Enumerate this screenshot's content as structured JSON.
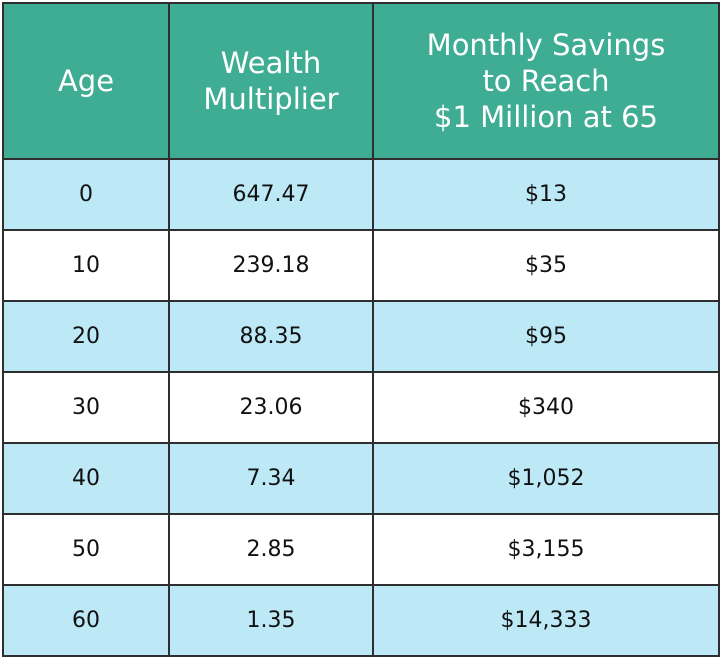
{
  "table": {
    "header": [
      [
        "Age"
      ],
      [
        "Wealth",
        "Multiplier"
      ],
      [
        "Monthly Savings",
        "to Reach",
        "$1 Million at 65"
      ]
    ],
    "rows": [
      [
        "0",
        "647.47",
        "$13"
      ],
      [
        "10",
        "239.18",
        "$35"
      ],
      [
        "20",
        "88.35",
        "$95"
      ],
      [
        "30",
        "23.06",
        "$340"
      ],
      [
        "40",
        "7.34",
        "$1,052"
      ],
      [
        "50",
        "2.85",
        "$3,155"
      ],
      [
        "60",
        "1.35",
        "$14,333"
      ]
    ]
  }
}
